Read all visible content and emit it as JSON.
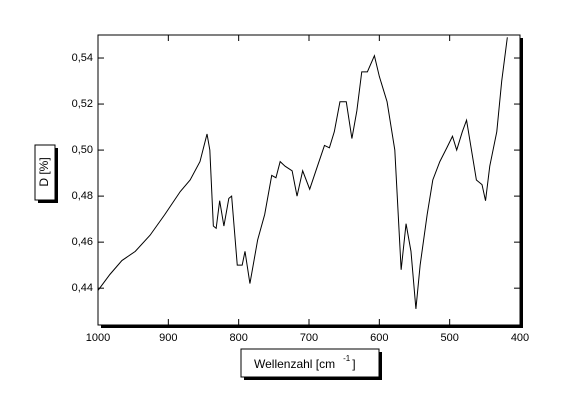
{
  "chart_data": {
    "type": "line",
    "xlabel": [
      "Wellenzahl [cm",
      "-1",
      "]"
    ],
    "ylabel": "D [%]",
    "x": [
      1000,
      983,
      966,
      947,
      926,
      905,
      883,
      869,
      855,
      845,
      841,
      836,
      832,
      827,
      821,
      814,
      810,
      802,
      795,
      791,
      784,
      773,
      763,
      753,
      747,
      741,
      734,
      724,
      717,
      709,
      699,
      688,
      678,
      671,
      664,
      656,
      647,
      639,
      632,
      625,
      617,
      607,
      600,
      589,
      578,
      569,
      562,
      555,
      548,
      542,
      532,
      524,
      514,
      504,
      496,
      490,
      482,
      476,
      469,
      462,
      454,
      449,
      443,
      433,
      426,
      418
    ],
    "series": [
      {
        "color": "#000000",
        "values": [
          0.439,
          0.446,
          0.452,
          0.456,
          0.463,
          0.472,
          0.482,
          0.487,
          0.495,
          0.507,
          0.5,
          0.467,
          0.466,
          0.478,
          0.467,
          0.479,
          0.48,
          0.45,
          0.45,
          0.456,
          0.442,
          0.461,
          0.472,
          0.489,
          0.488,
          0.495,
          0.493,
          0.491,
          0.48,
          0.491,
          0.483,
          0.493,
          0.502,
          0.501,
          0.508,
          0.521,
          0.521,
          0.505,
          0.517,
          0.534,
          0.534,
          0.541,
          0.532,
          0.521,
          0.5,
          0.448,
          0.468,
          0.456,
          0.431,
          0.45,
          0.472,
          0.487,
          0.495,
          0.501,
          0.506,
          0.5,
          0.508,
          0.513,
          0.5,
          0.487,
          0.485,
          0.478,
          0.493,
          0.508,
          0.53,
          0.549
        ]
      }
    ],
    "xlim": [
      1000,
      400
    ],
    "xticks": [
      1000,
      900,
      800,
      700,
      600,
      500,
      400
    ],
    "ylim": [
      0.424,
      0.55
    ],
    "yticks": [
      {
        "value": 0.44,
        "label": "0,44"
      },
      {
        "value": 0.46,
        "label": "0,46"
      },
      {
        "value": 0.48,
        "label": "0,48"
      },
      {
        "value": 0.5,
        "label": "0,50"
      },
      {
        "value": 0.52,
        "label": "0,52"
      },
      {
        "value": 0.54,
        "label": "0,54"
      }
    ]
  }
}
